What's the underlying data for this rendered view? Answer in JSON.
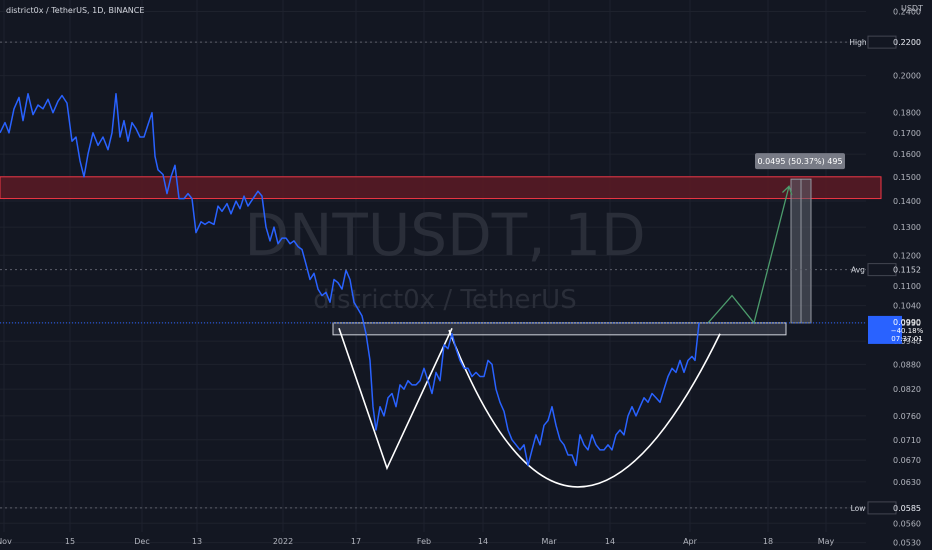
{
  "header": {
    "title": "district0x / TetherUS, 1D, BINANCE"
  },
  "watermark": {
    "symbol": "DNTUSDT, 1D",
    "name": "district0x / TetherUS"
  },
  "colors": {
    "background": "#131722",
    "grid": "#1e222d",
    "price_line": "#2962ff",
    "resistance_zone_fill": "#5c1a24",
    "resistance_zone_border": "#f23645",
    "neckline_fill": "#3a3f4b",
    "pattern_stroke": "#ffffff",
    "projection": "#4c9c6c",
    "badge": "#2962ff"
  },
  "chart_data": {
    "type": "line",
    "title": "district0x / TetherUS, 1D, BINANCE",
    "xlabel": "",
    "ylabel": "",
    "y_unit": "USDT",
    "ylim": [
      0.0519,
      0.248
    ],
    "y_ticks": [
      "0.2400",
      "0.2200",
      "0.2000",
      "0.1800",
      "0.1700",
      "0.1600",
      "0.1500",
      "0.1400",
      "0.1300",
      "0.1200",
      "0.1100",
      "0.1040",
      "0.0990",
      "0.0940",
      "0.0880",
      "0.0820",
      "0.0760",
      "0.0710",
      "0.0670",
      "0.0630",
      "0.0585",
      "0.0560",
      "0.0530"
    ],
    "x_ticks": [
      {
        "label": "Nov",
        "x": 4
      },
      {
        "label": "15",
        "x": 70
      },
      {
        "label": "Dec",
        "x": 142
      },
      {
        "label": "13",
        "x": 197
      },
      {
        "label": "2022",
        "x": 283
      },
      {
        "label": "17",
        "x": 356
      },
      {
        "label": "Feb",
        "x": 424
      },
      {
        "label": "14",
        "x": 483
      },
      {
        "label": "Mar",
        "x": 549
      },
      {
        "label": "14",
        "x": 610
      },
      {
        "label": "Apr",
        "x": 690
      },
      {
        "label": "18",
        "x": 768
      },
      {
        "label": "May",
        "x": 826
      }
    ],
    "series": [
      {
        "name": "",
        "points": [
          [
            0,
            0.17
          ],
          [
            5,
            0.175
          ],
          [
            9,
            0.17
          ],
          [
            14,
            0.182
          ],
          [
            19,
            0.188
          ],
          [
            23,
            0.176
          ],
          [
            28,
            0.19
          ],
          [
            33,
            0.179
          ],
          [
            38,
            0.184
          ],
          [
            43,
            0.182
          ],
          [
            48,
            0.187
          ],
          [
            53,
            0.18
          ],
          [
            58,
            0.186
          ],
          [
            62,
            0.189
          ],
          [
            67,
            0.185
          ],
          [
            72,
            0.166
          ],
          [
            76,
            0.168
          ],
          [
            80,
            0.157
          ],
          [
            84,
            0.15
          ],
          [
            88,
            0.16
          ],
          [
            93,
            0.17
          ],
          [
            98,
            0.164
          ],
          [
            103,
            0.168
          ],
          [
            108,
            0.162
          ],
          [
            112,
            0.17
          ],
          [
            116,
            0.19
          ],
          [
            120,
            0.168
          ],
          [
            124,
            0.176
          ],
          [
            128,
            0.166
          ],
          [
            132,
            0.175
          ],
          [
            136,
            0.172
          ],
          [
            140,
            0.168
          ],
          [
            144,
            0.168
          ],
          [
            148,
            0.174
          ],
          [
            152,
            0.18
          ],
          [
            155,
            0.159
          ],
          [
            158,
            0.153
          ],
          [
            163,
            0.151
          ],
          [
            167,
            0.143
          ],
          [
            171,
            0.15
          ],
          [
            175,
            0.155
          ],
          [
            179,
            0.141
          ],
          [
            184,
            0.141
          ],
          [
            188,
            0.143
          ],
          [
            192,
            0.141
          ],
          [
            196,
            0.128
          ],
          [
            201,
            0.132
          ],
          [
            205,
            0.131
          ],
          [
            209,
            0.132
          ],
          [
            214,
            0.131
          ],
          [
            218,
            0.138
          ],
          [
            222,
            0.136
          ],
          [
            227,
            0.139
          ],
          [
            231,
            0.135
          ],
          [
            236,
            0.14
          ],
          [
            240,
            0.137
          ],
          [
            244,
            0.142
          ],
          [
            248,
            0.138
          ],
          [
            253,
            0.141
          ],
          [
            258,
            0.144
          ],
          [
            262,
            0.142
          ],
          [
            266,
            0.13
          ],
          [
            270,
            0.125
          ],
          [
            274,
            0.13
          ],
          [
            278,
            0.124
          ],
          [
            282,
            0.126
          ],
          [
            286,
            0.126
          ],
          [
            290,
            0.124
          ],
          [
            294,
            0.125
          ],
          [
            298,
            0.123
          ],
          [
            302,
            0.122
          ],
          [
            306,
            0.117
          ],
          [
            310,
            0.112
          ],
          [
            314,
            0.114
          ],
          [
            318,
            0.109
          ],
          [
            322,
            0.107
          ],
          [
            326,
            0.108
          ],
          [
            330,
            0.105
          ],
          [
            334,
            0.112
          ],
          [
            338,
            0.111
          ],
          [
            342,
            0.109
          ],
          [
            346,
            0.115
          ],
          [
            350,
            0.112
          ],
          [
            354,
            0.105
          ],
          [
            358,
            0.103
          ],
          [
            362,
            0.101
          ],
          [
            366,
            0.096
          ],
          [
            370,
            0.089
          ],
          [
            373,
            0.078
          ],
          [
            376,
            0.073
          ],
          [
            380,
            0.078
          ],
          [
            384,
            0.076
          ],
          [
            388,
            0.08
          ],
          [
            392,
            0.081
          ],
          [
            396,
            0.078
          ],
          [
            400,
            0.083
          ],
          [
            404,
            0.082
          ],
          [
            408,
            0.084
          ],
          [
            412,
            0.083
          ],
          [
            416,
            0.083
          ],
          [
            420,
            0.084
          ],
          [
            424,
            0.087
          ],
          [
            428,
            0.084
          ],
          [
            432,
            0.081
          ],
          [
            436,
            0.086
          ],
          [
            440,
            0.084
          ],
          [
            444,
            0.093
          ],
          [
            448,
            0.092
          ],
          [
            452,
            0.096
          ],
          [
            456,
            0.092
          ],
          [
            460,
            0.089
          ],
          [
            464,
            0.087
          ],
          [
            468,
            0.087
          ],
          [
            472,
            0.085
          ],
          [
            476,
            0.086
          ],
          [
            480,
            0.085
          ],
          [
            484,
            0.085
          ],
          [
            488,
            0.089
          ],
          [
            492,
            0.088
          ],
          [
            496,
            0.082
          ],
          [
            500,
            0.079
          ],
          [
            504,
            0.077
          ],
          [
            508,
            0.073
          ],
          [
            512,
            0.071
          ],
          [
            516,
            0.07
          ],
          [
            520,
            0.069
          ],
          [
            524,
            0.07
          ],
          [
            528,
            0.066
          ],
          [
            532,
            0.069
          ],
          [
            536,
            0.072
          ],
          [
            540,
            0.07
          ],
          [
            544,
            0.074
          ],
          [
            548,
            0.075
          ],
          [
            552,
            0.078
          ],
          [
            556,
            0.074
          ],
          [
            560,
            0.071
          ],
          [
            564,
            0.07
          ],
          [
            568,
            0.068
          ],
          [
            572,
            0.068
          ],
          [
            576,
            0.066
          ],
          [
            580,
            0.072
          ],
          [
            584,
            0.07
          ],
          [
            588,
            0.069
          ],
          [
            592,
            0.072
          ],
          [
            596,
            0.07
          ],
          [
            600,
            0.069
          ],
          [
            604,
            0.069
          ],
          [
            608,
            0.07
          ],
          [
            612,
            0.069
          ],
          [
            616,
            0.072
          ],
          [
            620,
            0.073
          ],
          [
            624,
            0.072
          ],
          [
            628,
            0.076
          ],
          [
            632,
            0.078
          ],
          [
            636,
            0.076
          ],
          [
            640,
            0.078
          ],
          [
            644,
            0.08
          ],
          [
            648,
            0.079
          ],
          [
            652,
            0.081
          ],
          [
            656,
            0.08
          ],
          [
            660,
            0.079
          ],
          [
            664,
            0.082
          ],
          [
            668,
            0.085
          ],
          [
            672,
            0.087
          ],
          [
            676,
            0.086
          ],
          [
            680,
            0.089
          ],
          [
            684,
            0.086
          ],
          [
            688,
            0.089
          ],
          [
            692,
            0.09
          ],
          [
            695,
            0.089
          ],
          [
            699,
            0.099
          ]
        ]
      }
    ],
    "price_labels": [
      {
        "key": "High",
        "label": "High",
        "value": "0.2200",
        "y_value": 0.22
      },
      {
        "key": "Avg",
        "label": "Avg",
        "value": "0.1152",
        "y_value": 0.1152
      },
      {
        "key": "Low",
        "label": "Low",
        "value": "0.0585",
        "y_value": 0.0585
      }
    ],
    "current": {
      "price": "0.0990",
      "change": "−40.18%",
      "countdown": "07:37:01",
      "y_value": 0.099
    },
    "measurement": {
      "label": "0.0495 (50.37%) 495"
    },
    "annotations": {
      "resistance_zone": {
        "y_top": 0.15,
        "y_bottom": 0.141
      },
      "neckline": {
        "y_top": 0.099,
        "y_bottom": 0.0957
      },
      "double_bottom": [
        [
          339,
          0.0975
        ],
        [
          387,
          0.0655
        ],
        [
          452,
          0.0975
        ]
      ],
      "cup_curve": {
        "start": [
          449,
          0.097
        ],
        "low_x": 570,
        "low_y": 0.0621,
        "end": [
          720,
          0.096
        ]
      },
      "projection_path": [
        [
          708,
          0.099
        ],
        [
          732,
          0.107
        ],
        [
          754,
          0.099
        ],
        [
          789,
          0.146
        ]
      ],
      "measure_bar": {
        "x_left": 791,
        "x_right": 811,
        "y_top": 0.149,
        "y_bottom": 0.099
      }
    }
  }
}
